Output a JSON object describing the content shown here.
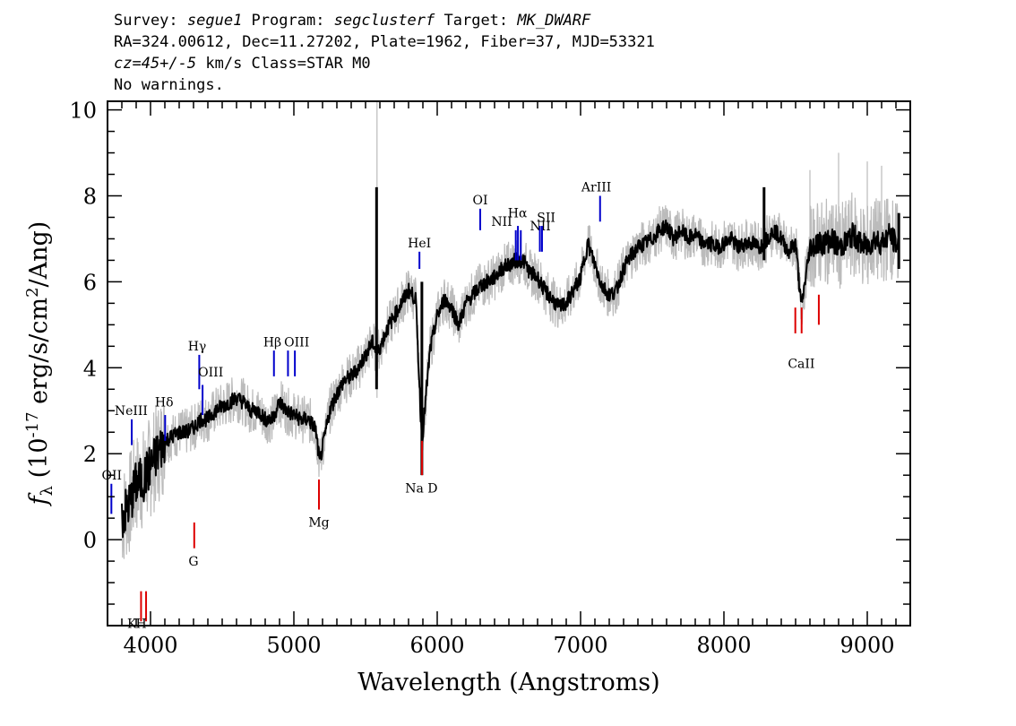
{
  "header": {
    "line1": [
      {
        "t": "Survey: ",
        "i": false
      },
      {
        "t": "segue1",
        "i": true
      },
      {
        "t": " Program: ",
        "i": false
      },
      {
        "t": "segclusterf",
        "i": true
      },
      {
        "t": " Target: ",
        "i": false
      },
      {
        "t": "MK_DWARF",
        "i": true
      }
    ],
    "line2": "RA=324.00612, Dec=11.27202, Plate=1962, Fiber=37, MJD=53321",
    "line3": [
      {
        "t": "cz=45+/-5",
        "i": true
      },
      {
        "t": " km/s Class=STAR M0",
        "i": false
      }
    ],
    "line4": "No warnings."
  },
  "chart_data": {
    "type": "line",
    "xlabel": "Wavelength (Angstroms)",
    "ylabel": "f_λ (10^-17 erg/s/cm^2/Ang)",
    "xlim": [
      3700,
      9300
    ],
    "ylim": [
      -2,
      10.2
    ],
    "x_ticks": [
      4000,
      5000,
      6000,
      7000,
      8000,
      9000
    ],
    "y_ticks": [
      0,
      2,
      4,
      6,
      8,
      10
    ],
    "grid": false,
    "colors": {
      "flux": "#000000",
      "error": "#bbbbbb",
      "emission": "#0000cc",
      "absorption": "#dd0000"
    },
    "series": [
      {
        "style": "flux",
        "x": [
          3800,
          3850,
          3900,
          3950,
          4000,
          4050,
          4100,
          4150,
          4200,
          4250,
          4300,
          4350,
          4400,
          4450,
          4500,
          4550,
          4600,
          4650,
          4700,
          4750,
          4800,
          4850,
          4900,
          4950,
          5000,
          5050,
          5100,
          5150,
          5180,
          5250,
          5300,
          5350,
          5400,
          5450,
          5500,
          5550,
          5580,
          5650,
          5700,
          5750,
          5800,
          5850,
          5893,
          5950,
          6000,
          6050,
          6100,
          6150,
          6200,
          6250,
          6300,
          6350,
          6400,
          6450,
          6500,
          6550,
          6600,
          6650,
          6700,
          6750,
          6800,
          6850,
          6900,
          6950,
          7000,
          7050,
          7100,
          7150,
          7200,
          7250,
          7300,
          7350,
          7400,
          7450,
          7500,
          7550,
          7600,
          7650,
          7700,
          7750,
          7800,
          7850,
          7900,
          7950,
          8000,
          8050,
          8100,
          8150,
          8200,
          8250,
          8300,
          8350,
          8400,
          8450,
          8500,
          8540,
          8600,
          8650,
          8700,
          8750,
          8800,
          8850,
          8900,
          8950,
          9000,
          9050,
          9100,
          9150,
          9200,
          9220
        ],
        "y": [
          0.5,
          0.8,
          1.3,
          1.4,
          1.7,
          2.0,
          2.3,
          2.4,
          2.5,
          2.5,
          2.6,
          2.8,
          2.8,
          3.0,
          3.1,
          3.2,
          3.3,
          3.2,
          3.0,
          3.0,
          2.8,
          2.8,
          3.2,
          3.0,
          2.9,
          2.8,
          2.8,
          2.6,
          1.8,
          3.0,
          3.4,
          3.7,
          3.8,
          4.0,
          4.3,
          4.6,
          4.3,
          4.9,
          5.2,
          5.5,
          5.8,
          5.6,
          2.3,
          4.4,
          5.2,
          5.6,
          5.4,
          5.0,
          5.5,
          5.7,
          5.9,
          6.0,
          6.1,
          6.3,
          6.4,
          6.5,
          6.5,
          6.2,
          6.1,
          5.8,
          5.6,
          5.4,
          5.5,
          5.8,
          6.1,
          6.9,
          6.4,
          5.9,
          5.7,
          5.8,
          6.3,
          6.6,
          6.8,
          6.9,
          7.0,
          7.2,
          7.3,
          7.0,
          7.2,
          7.0,
          7.1,
          6.9,
          6.9,
          6.8,
          6.9,
          7.0,
          6.8,
          6.9,
          6.9,
          6.8,
          7.0,
          7.2,
          7.0,
          6.7,
          6.9,
          5.4,
          6.8,
          6.9,
          6.9,
          7.0,
          6.8,
          6.9,
          7.1,
          6.9,
          6.8,
          7.0,
          6.9,
          7.1,
          6.9,
          6.8
        ],
        "spikes": [
          {
            "x": 5577,
            "y": [
              3.5,
              8.2
            ]
          },
          {
            "x": 5893,
            "y": [
              1.5,
              6.0
            ]
          },
          {
            "x": 8280,
            "y": [
              6.5,
              8.2
            ]
          },
          {
            "x": 9220,
            "y": [
              6.3,
              7.6
            ]
          }
        ]
      },
      {
        "style": "error",
        "x": [
          3800,
          3850,
          3900,
          3950,
          4000,
          4050,
          4100,
          4150,
          4200,
          4250,
          4300,
          4350,
          4400,
          4450,
          4500,
          4550,
          4600,
          4650,
          4700,
          4750,
          4800,
          4850,
          4900,
          4950,
          5000,
          5050,
          5100,
          5150,
          5180,
          5250,
          5300,
          5350,
          5400,
          5450,
          5500,
          5550,
          5580,
          5650,
          5700,
          5750,
          5800,
          5850,
          5893,
          5950,
          6000,
          6050,
          6100,
          6150,
          6200,
          6250,
          6300,
          6350,
          6400,
          6450,
          6500,
          6550,
          6600,
          6650,
          6700,
          6750,
          6800,
          6850,
          6900,
          6950,
          7000,
          7050,
          7100,
          7150,
          7200,
          7250,
          7300,
          7350,
          7400,
          7450,
          7500,
          7550,
          7600,
          7650,
          7700,
          7750,
          7800,
          7850,
          7900,
          7950,
          8000,
          8050,
          8100,
          8150,
          8200,
          8250,
          8300,
          8350,
          8400,
          8450,
          8500,
          8540,
          8600,
          8650,
          8700,
          8750,
          8800,
          8850,
          8900,
          8950,
          9000,
          9050,
          9100,
          9150,
          9200,
          9220
        ],
        "half_width": 0.35,
        "spikes": [
          {
            "x": 5580,
            "y": [
              3.3,
              10.2
            ]
          },
          {
            "x": 8600,
            "y": [
              6.0,
              8.6
            ]
          },
          {
            "x": 8800,
            "y": [
              6.2,
              9.0
            ]
          },
          {
            "x": 9000,
            "y": [
              6.1,
              8.8
            ]
          },
          {
            "x": 9100,
            "y": [
              6.1,
              8.7
            ]
          }
        ]
      }
    ],
    "line_markers": [
      {
        "label": "OII",
        "x": 3727,
        "y0": 0.6,
        "y1": 1.3,
        "kind": "emission",
        "lx": 3730,
        "ly": 1.4
      },
      {
        "label": "NeIII",
        "x": 3869,
        "y0": 2.2,
        "y1": 2.8,
        "kind": "emission",
        "lx": 3865,
        "ly": 2.9
      },
      {
        "label": "Hδ",
        "x": 4102,
        "y0": 2.3,
        "y1": 2.9,
        "kind": "emission",
        "lx": 4095,
        "ly": 3.1
      },
      {
        "label": "Hγ",
        "x": 4340,
        "y0": 3.5,
        "y1": 4.3,
        "kind": "emission",
        "lx": 4325,
        "ly": 4.4
      },
      {
        "label": "OIII",
        "x": 4363,
        "y0": 2.9,
        "y1": 3.6,
        "kind": "emission",
        "lx": 4420,
        "ly": 3.8
      },
      {
        "label": "Hβ",
        "x": 4861,
        "y0": 3.8,
        "y1": 4.4,
        "kind": "emission",
        "lx": 4850,
        "ly": 4.5
      },
      {
        "label": "OIII",
        "x": 4959,
        "y0": 3.8,
        "y1": 4.4,
        "kind": "emission",
        "lx": 5020,
        "ly": 4.5
      },
      {
        "label": "OIII",
        "x": 5007,
        "y0": 3.8,
        "y1": 4.4,
        "kind": "emission",
        "lx": -1,
        "ly": -1
      },
      {
        "label": "HeI",
        "x": 5876,
        "y0": 6.3,
        "y1": 6.7,
        "kind": "emission",
        "lx": 5876,
        "ly": 6.8
      },
      {
        "label": "OI",
        "x": 6300,
        "y0": 7.2,
        "y1": 7.7,
        "kind": "emission",
        "lx": 6300,
        "ly": 7.8
      },
      {
        "label": "NII",
        "x": 6548,
        "y0": 6.5,
        "y1": 7.2,
        "kind": "emission",
        "lx": 6450,
        "ly": 7.3
      },
      {
        "label": "Hα",
        "x": 6563,
        "y0": 6.5,
        "y1": 7.3,
        "kind": "emission",
        "lx": 6560,
        "ly": 7.5
      },
      {
        "label": "NII",
        "x": 6583,
        "y0": 6.5,
        "y1": 7.2,
        "kind": "emission",
        "lx": 6720,
        "ly": 7.2
      },
      {
        "label": "SII",
        "x": 6716,
        "y0": 6.7,
        "y1": 7.3,
        "kind": "emission",
        "lx": 6760,
        "ly": 7.4
      },
      {
        "label": "SII",
        "x": 6731,
        "y0": 6.7,
        "y1": 7.3,
        "kind": "emission",
        "lx": -1,
        "ly": -1
      },
      {
        "label": "ArIII",
        "x": 7136,
        "y0": 7.4,
        "y1": 8.0,
        "kind": "emission",
        "lx": 7110,
        "ly": 8.1
      },
      {
        "label": "K",
        "x": 3934,
        "y0": -1.9,
        "y1": -1.2,
        "kind": "absorption",
        "lx": 3870,
        "ly": -2.05
      },
      {
        "label": "H",
        "x": 3969,
        "y0": -1.9,
        "y1": -1.2,
        "kind": "absorption",
        "lx": 3935,
        "ly": -2.05
      },
      {
        "label": "G",
        "x": 4305,
        "y0": -0.2,
        "y1": 0.4,
        "kind": "absorption",
        "lx": 4300,
        "ly": -0.6
      },
      {
        "label": "Mg",
        "x": 5175,
        "y0": 0.7,
        "y1": 1.4,
        "kind": "absorption",
        "lx": 5175,
        "ly": 0.3
      },
      {
        "label": "Na D",
        "x": 5894,
        "y0": 1.5,
        "y1": 2.3,
        "kind": "absorption",
        "lx": 5890,
        "ly": 1.1
      },
      {
        "label": "CaII",
        "x": 8498,
        "y0": 4.8,
        "y1": 5.4,
        "kind": "absorption",
        "lx": 8540,
        "ly": 4.0
      },
      {
        "label": "CaII",
        "x": 8542,
        "y0": 4.8,
        "y1": 5.4,
        "kind": "absorption",
        "lx": -1,
        "ly": -1
      },
      {
        "label": "CaII",
        "x": 8662,
        "y0": 5.0,
        "y1": 5.7,
        "kind": "absorption",
        "lx": -1,
        "ly": -1
      }
    ]
  }
}
